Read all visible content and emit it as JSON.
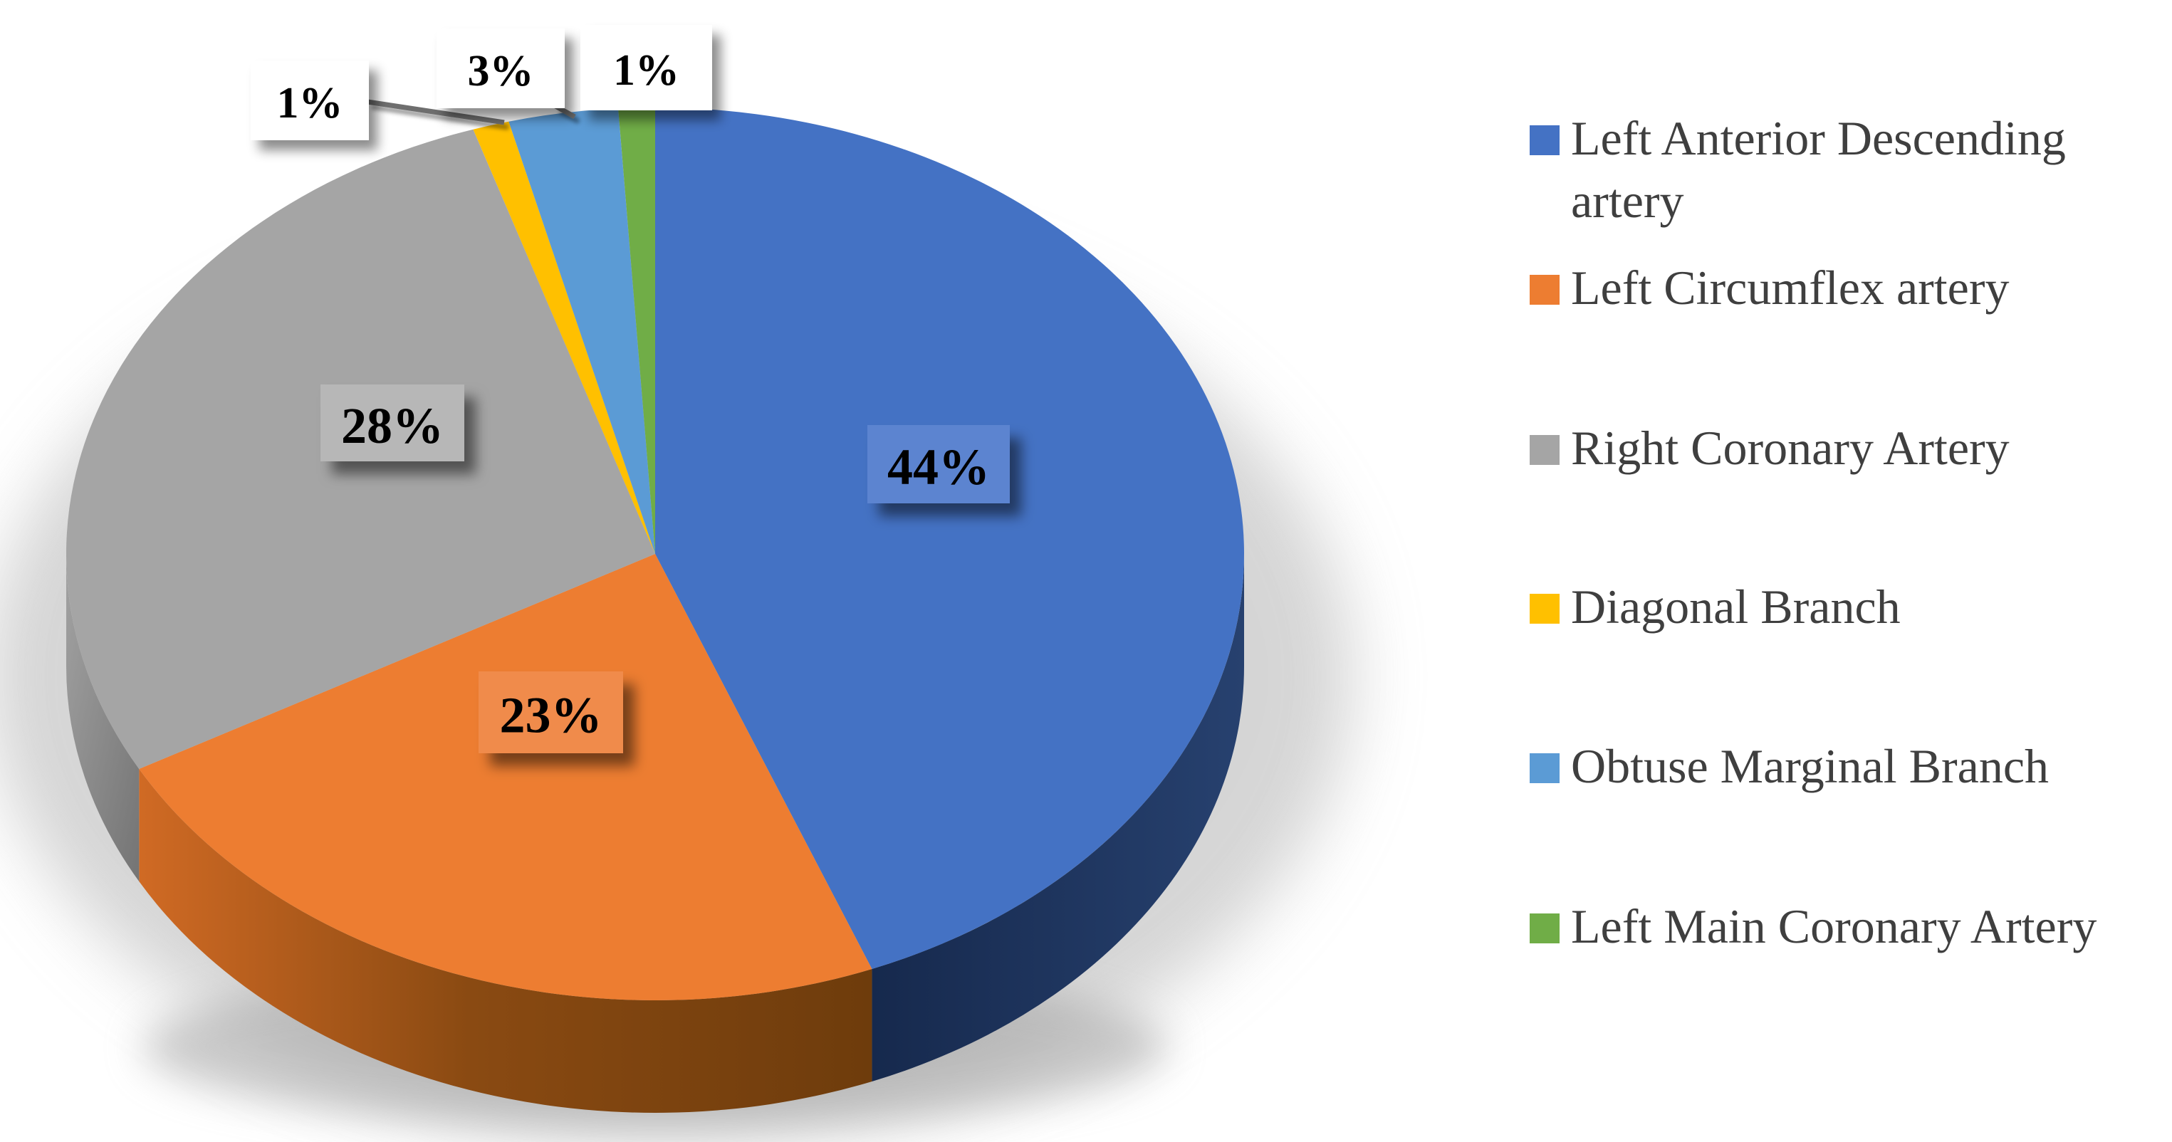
{
  "chart_data": {
    "type": "pie",
    "style": "3d",
    "unit": "%",
    "title": "",
    "legend_position": "right",
    "start_angle_deg": 0,
    "direction": "clockwise",
    "background": "#FFFFFF",
    "legend_text_color": "#3F3F3F",
    "data_label_color": "#000000",
    "leader_line_color": "#6E6E6E",
    "slices": [
      {
        "label": "Left Anterior Descending artery",
        "value": 44,
        "data_label": "44%",
        "color": "#4472C4",
        "side_color": "#1F3864",
        "label_bg": "#5C84D0"
      },
      {
        "label": "Left Circumflex artery",
        "value": 23,
        "data_label": "23%",
        "color": "#ED7D31",
        "side_color": "#7E4813",
        "label_bg": "#F08B4C"
      },
      {
        "label": "Right Coronary Artery",
        "value": 28,
        "data_label": "28%",
        "color": "#A5A5A5",
        "side_color": "#828282",
        "label_bg": "#B7B7B7"
      },
      {
        "label": "Diagonal Branch",
        "value": 1,
        "data_label": "1%",
        "color": "#FFC000",
        "side_color": "#9A7400",
        "label_bg": "#FFFFFF"
      },
      {
        "label": "Obtuse Marginal Branch",
        "value": 3,
        "data_label": "3%",
        "color": "#5B9BD5",
        "side_color": "#2E6DA0",
        "label_bg": "#FFFFFF"
      },
      {
        "label": "Left Main Coronary Artery",
        "value": 1,
        "data_label": "1%",
        "color": "#70AD47",
        "side_color": "#4F7A32",
        "label_bg": "#FFFFFF"
      }
    ]
  }
}
